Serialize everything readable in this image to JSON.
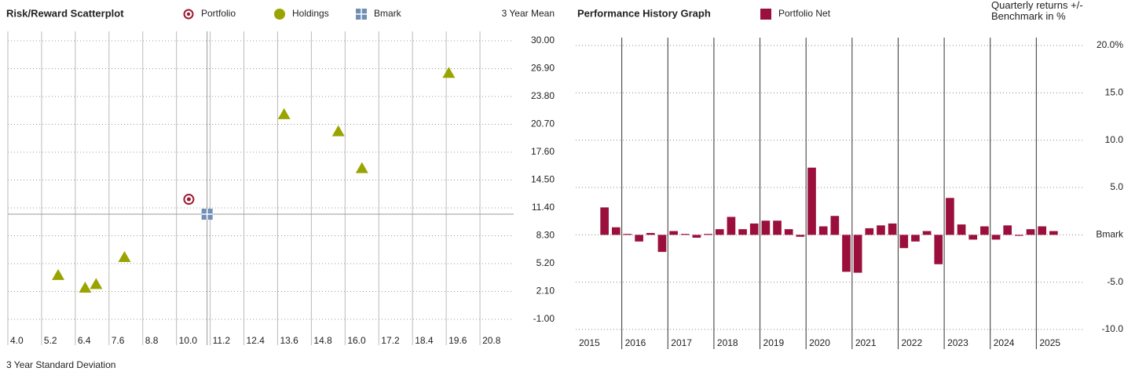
{
  "chart_data": [
    {
      "type": "scatter",
      "title": "Risk/Reward Scatterplot",
      "x_label": "3 Year Standard Deviation",
      "y_label": "3 Year Mean",
      "series": [
        {
          "name": "Portfolio",
          "color": "#9b1b30",
          "marker": "ring",
          "x": [
            10.44
          ],
          "values": [
            12.36
          ]
        },
        {
          "name": "Holdings",
          "color": "#9aa400",
          "marker": "triangle",
          "x": [
            5.79,
            6.75,
            7.14,
            8.15,
            13.83,
            15.76,
            16.6,
            19.69
          ],
          "values": [
            3.9,
            2.5,
            2.9,
            5.9,
            21.8,
            19.9,
            15.8,
            26.4
          ]
        },
        {
          "name": "Bmark",
          "color": "#6f8fb5",
          "marker": "square",
          "x": [
            11.09
          ],
          "values": [
            10.7
          ]
        }
      ],
      "xlim": [
        4,
        22
      ],
      "xticks": [
        {
          "value": 4,
          "label": "4.0"
        },
        5.2,
        6.4,
        7.6,
        8.8,
        {
          "value": 10,
          "label": "10.0"
        },
        11.2,
        12.4,
        13.6,
        14.8,
        {
          "value": 16,
          "label": "16.0"
        },
        17.2,
        18.4,
        19.6,
        20.8
      ],
      "ylim": [
        -2.57,
        31.05
      ],
      "yticks": [
        {
          "value": 30,
          "label": "30.00"
        },
        {
          "value": 26.9,
          "label": "26.90"
        },
        {
          "value": 23.8,
          "label": "23.80"
        },
        {
          "value": 20.7,
          "label": "20.70"
        },
        {
          "value": 17.6,
          "label": "17.60"
        },
        {
          "value": 14.5,
          "label": "14.50"
        },
        {
          "value": 11.4,
          "label": "11.40"
        },
        {
          "value": 8.3,
          "label": "8.30"
        },
        {
          "value": 5.2,
          "label": "5.20"
        },
        {
          "value": 2.1,
          "label": "2.10"
        },
        {
          "value": -1,
          "label": "-1.00"
        }
      ],
      "grid": true
    },
    {
      "type": "bar",
      "title": "Performance History Graph",
      "y_label": "Quarterly returns +/- Benchmark in %",
      "x": [
        2015.5,
        2015.75,
        2016,
        2016.25,
        2016.5,
        2016.75,
        2017,
        2017.25,
        2017.5,
        2017.75,
        2018,
        2018.25,
        2018.5,
        2018.75,
        2019,
        2019.25,
        2019.5,
        2019.75,
        2020,
        2020.25,
        2020.5,
        2020.75,
        2021,
        2021.25,
        2021.5,
        2021.75,
        2022,
        2022.25,
        2022.5,
        2022.75,
        2023,
        2023.25,
        2023.5,
        2023.75,
        2024,
        2024.25,
        2024.5,
        2024.75,
        2025,
        2025.25
      ],
      "series": [
        {
          "name": "Portfolio Net",
          "color": "#9b0f3c",
          "values": [
            2.9,
            0.8,
            0.1,
            -0.7,
            0.2,
            -1.8,
            0.4,
            0.1,
            -0.3,
            0.1,
            0.6,
            1.9,
            0.6,
            1.2,
            1.5,
            1.5,
            0.6,
            -0.2,
            7.1,
            0.9,
            2.0,
            -3.9,
            -4.0,
            0.7,
            1.0,
            1.2,
            -1.4,
            -0.7,
            0.4,
            -3.1,
            3.9,
            1.1,
            -0.5,
            0.9,
            -0.5,
            1.0,
            -0.1,
            0.6,
            0.9,
            0.4
          ]
        }
      ],
      "xlim": [
        2015,
        2026
      ],
      "xticks": [
        2015,
        2016,
        2017,
        2018,
        2019,
        2020,
        2021,
        2022,
        2023,
        2024,
        2025
      ],
      "ylim": [
        -10.41,
        20.83
      ],
      "yticks": [
        {
          "value": 20,
          "label": "20.0%"
        },
        {
          "value": 15,
          "label": "15.0"
        },
        {
          "value": 10,
          "label": "10.0"
        },
        {
          "value": 5,
          "label": "5.0"
        },
        {
          "value": 0,
          "label": "Bmark"
        },
        {
          "value": -5,
          "label": "-5.0"
        },
        {
          "value": -10,
          "label": "-10.0"
        }
      ],
      "grid": true
    }
  ]
}
